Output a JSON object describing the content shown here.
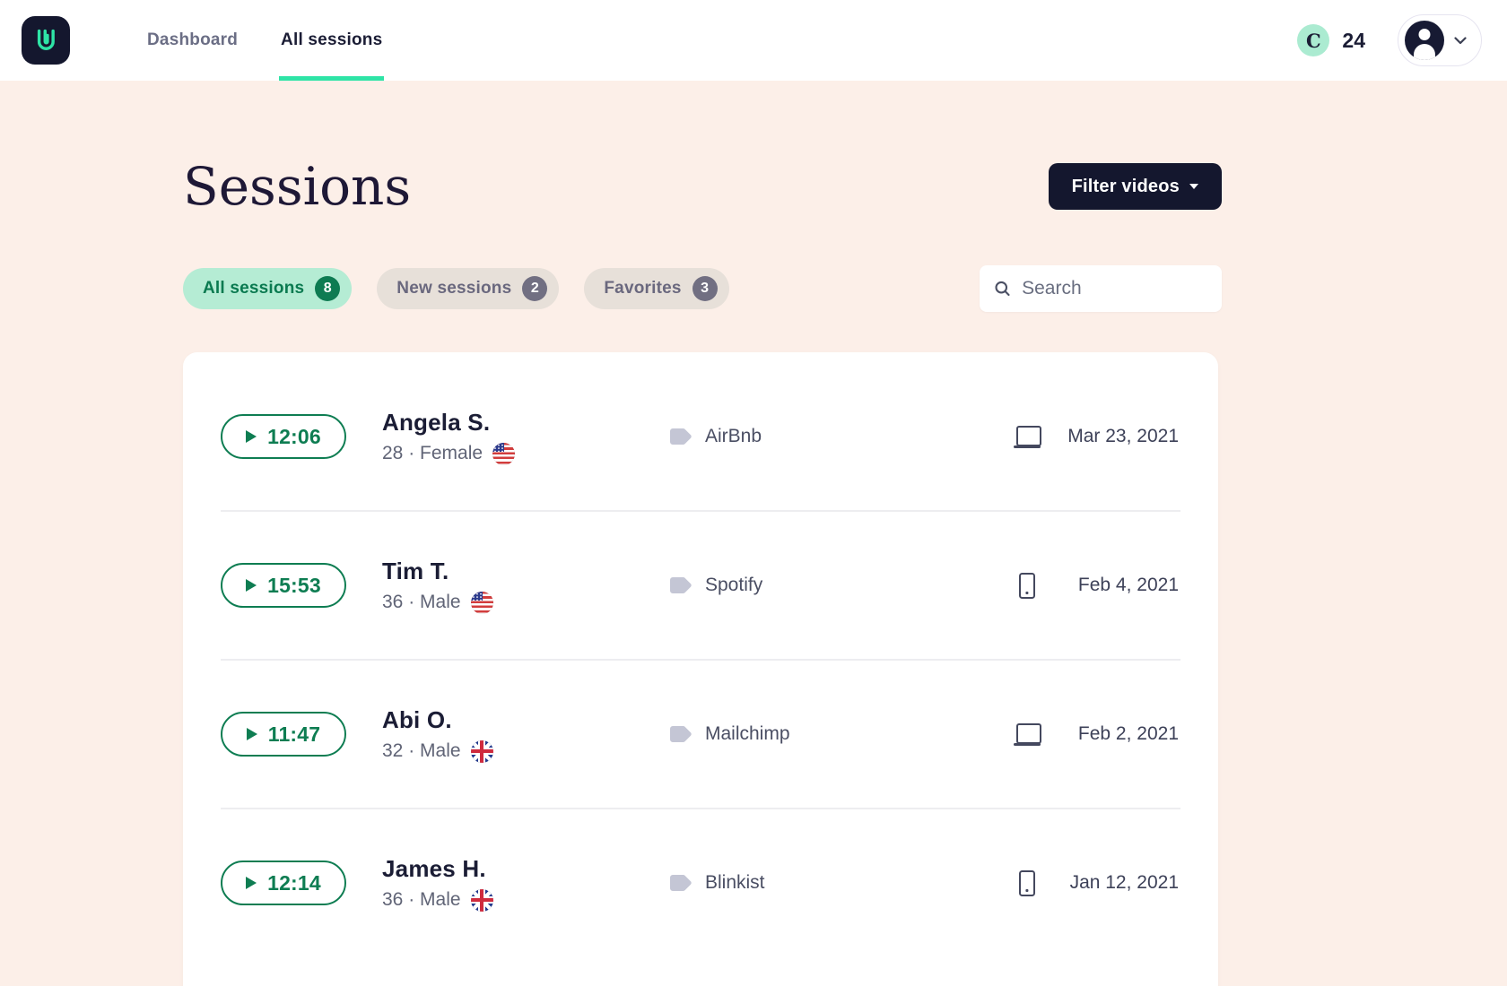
{
  "colors": {
    "accent_teal": "#2ee4a6",
    "dark_navy": "#14172e",
    "background_peach": "#fcefe8",
    "play_green": "#0e7d52",
    "active_tab_mint": "#b5ecd4",
    "inactive_tab_gray": "#e7e0d9"
  },
  "nav": {
    "logo_icon": "userbrain-logo",
    "items": [
      {
        "label": "Dashboard",
        "active": false
      },
      {
        "label": "All sessions",
        "active": true
      }
    ],
    "credits": {
      "icon": "credits-coin",
      "glyph": "C",
      "count": "24"
    },
    "account": {
      "icon": "user-avatar",
      "chevron": "chevron-down"
    }
  },
  "page": {
    "title": "Sessions",
    "filter_button": {
      "label": "Filter videos"
    }
  },
  "tabs": [
    {
      "label": "All sessions",
      "count": "8",
      "active": true
    },
    {
      "label": "New sessions",
      "count": "2",
      "active": false
    },
    {
      "label": "Favorites",
      "count": "3",
      "active": false
    }
  ],
  "search": {
    "placeholder": "Search",
    "icon": "search-icon"
  },
  "sessions": [
    {
      "duration": "12:06",
      "name": "Angela S.",
      "meta": "28 · Female",
      "flag": "us",
      "company": "AirBnb",
      "device": "desktop",
      "date": "Mar 23, 2021"
    },
    {
      "duration": "15:53",
      "name": "Tim T.",
      "meta": "36 · Male",
      "flag": "us",
      "company": "Spotify",
      "device": "mobile",
      "date": "Feb 4, 2021"
    },
    {
      "duration": "11:47",
      "name": "Abi O.",
      "meta": "32 · Male",
      "flag": "uk",
      "company": "Mailchimp",
      "device": "desktop",
      "date": "Feb 2, 2021"
    },
    {
      "duration": "12:14",
      "name": "James H.",
      "meta": "36 · Male",
      "flag": "uk",
      "company": "Blinkist",
      "device": "mobile",
      "date": "Jan 12, 2021"
    }
  ]
}
